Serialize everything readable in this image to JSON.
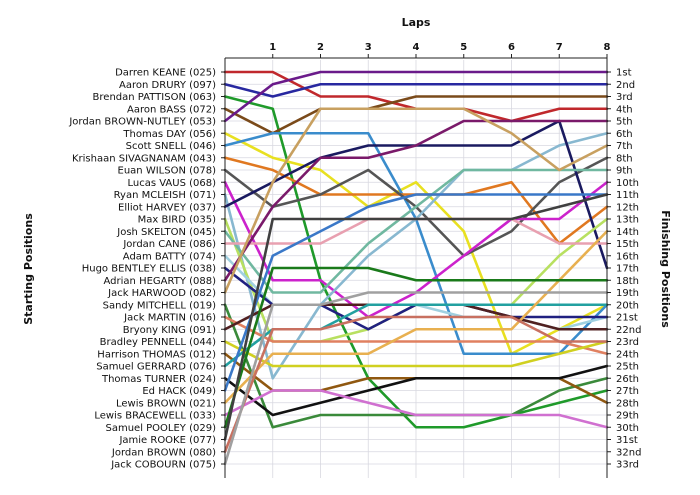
{
  "chart_data": {
    "type": "line",
    "title": "Laps",
    "ylabel_left": "Starting Positions",
    "ylabel_right": "Finishing Positions",
    "x": [
      0,
      1,
      2,
      3,
      4,
      5,
      6,
      7,
      8
    ],
    "x_tick_labels": [
      "1",
      "2",
      "3",
      "4",
      "5",
      "6",
      "7",
      "8"
    ],
    "xlim": [
      0,
      8
    ],
    "ylim": [
      1,
      33
    ],
    "grid": true,
    "finishing_labels": [
      "1st",
      "2nd",
      "3rd",
      "4th",
      "5th",
      "6th",
      "7th",
      "8th",
      "9th",
      "10th",
      "11th",
      "12th",
      "13th",
      "14th",
      "15th",
      "16th",
      "17th",
      "18th",
      "19th",
      "20th",
      "21st",
      "22nd",
      "23rd",
      "24th",
      "25th",
      "26th",
      "27th",
      "28th",
      "29th",
      "30th",
      "31st",
      "32nd",
      "33rd"
    ],
    "series": [
      {
        "name": "Darren KEANE (025)",
        "color": "#c0282c",
        "positions": [
          1,
          1,
          3,
          3,
          4,
          4,
          5,
          4,
          4
        ]
      },
      {
        "name": "Aaron DRURY (097)",
        "color": "#2828a0",
        "positions": [
          2,
          3,
          2,
          2,
          2,
          2,
          2,
          2,
          2
        ]
      },
      {
        "name": "Brendan PATTISON (063)",
        "color": "#1f9a2a",
        "positions": [
          3,
          4,
          18,
          26,
          30,
          30,
          29,
          28,
          27
        ]
      },
      {
        "name": "Aaron BASS (072)",
        "color": "#7a4a1a",
        "positions": [
          4,
          6,
          4,
          4,
          3,
          3,
          3,
          3,
          3
        ]
      },
      {
        "name": "Jordan BROWN-NUTLEY (053)",
        "color": "#6a1a8a",
        "positions": [
          5,
          2,
          1,
          1,
          1,
          1,
          1,
          1,
          1
        ]
      },
      {
        "name": "Thomas DAY (056)",
        "color": "#e8e020",
        "positions": [
          6,
          8,
          9,
          12,
          10,
          14,
          24,
          22,
          20
        ]
      },
      {
        "name": "Scott SNELL (046)",
        "color": "#3a8ccc",
        "positions": [
          7,
          6,
          6,
          6,
          13,
          24,
          24,
          24,
          20
        ]
      },
      {
        "name": "Krishaan SIVAGNANAM (043)",
        "color": "#e07820",
        "positions": [
          8,
          9,
          11,
          11,
          11,
          11,
          10,
          15,
          12
        ]
      },
      {
        "name": "Euan WILSON (078)",
        "color": "#555555",
        "positions": [
          9,
          12,
          11,
          9,
          12,
          16,
          14,
          10,
          8
        ]
      },
      {
        "name": "Lucas VAUS (068)",
        "color": "#cc22cc",
        "positions": [
          10,
          18,
          18,
          21,
          19,
          16,
          13,
          13,
          10
        ]
      },
      {
        "name": "Ryan MCLEISH (071)",
        "color": "#88b8d0",
        "positions": [
          11,
          26,
          20,
          16,
          13,
          9,
          9,
          7,
          6
        ]
      },
      {
        "name": "Elliot HARVEY (037)",
        "color": "#1a1a60",
        "positions": [
          12,
          10,
          8,
          7,
          7,
          7,
          7,
          5,
          17
        ]
      },
      {
        "name": "Max BIRD (035)",
        "color": "#b8e060",
        "positions": [
          13,
          23,
          23,
          22,
          20,
          20,
          20,
          16,
          13
        ]
      },
      {
        "name": "Josh SKELTON (045)",
        "color": "#70b8a0",
        "positions": [
          14,
          19,
          19,
          15,
          12,
          9,
          9,
          9,
          9
        ]
      },
      {
        "name": "Jordan CANE (086)",
        "color": "#e8a0b0",
        "positions": [
          15,
          15,
          15,
          13,
          13,
          13,
          13,
          15,
          15
        ]
      },
      {
        "name": "Adam BATTY (074)",
        "color": "#a0d0e0",
        "positions": [
          16,
          20,
          20,
          20,
          20,
          21,
          21,
          22,
          21
        ]
      },
      {
        "name": "Hugo BENTLEY ELLIS (038)",
        "color": "#202080",
        "positions": [
          17,
          20,
          20,
          22,
          20,
          20,
          21,
          21,
          21
        ]
      },
      {
        "name": "Adrian HEGARTY (088)",
        "color": "#7a1a6a",
        "positions": [
          18,
          12,
          8,
          8,
          7,
          5,
          5,
          5,
          5
        ]
      },
      {
        "name": "Jack HARWOOD (082)",
        "color": "#c8a060",
        "positions": [
          19,
          10,
          4,
          4,
          4,
          4,
          6,
          9,
          7
        ]
      },
      {
        "name": "Sandy MITCHELL (019)",
        "color": "#3a8a3a",
        "positions": [
          20,
          30,
          29,
          29,
          29,
          29,
          29,
          27,
          26
        ]
      },
      {
        "name": "Jack MARTIN (016)",
        "color": "#e08060",
        "positions": [
          21,
          23,
          23,
          23,
          23,
          23,
          23,
          23,
          24
        ]
      },
      {
        "name": "Bryony KING (091)",
        "color": "#502020",
        "positions": [
          22,
          20,
          20,
          20,
          20,
          20,
          21,
          22,
          22
        ]
      },
      {
        "name": "Bradley PENNELL (044)",
        "color": "#d0d020",
        "positions": [
          23,
          25,
          25,
          25,
          25,
          25,
          25,
          24,
          23
        ]
      },
      {
        "name": "Harrison THOMAS (012)",
        "color": "#905810",
        "positions": [
          24,
          27,
          27,
          26,
          26,
          26,
          26,
          26,
          28
        ]
      },
      {
        "name": "Samuel GERRARD (076)",
        "color": "#22a0a0",
        "positions": [
          25,
          22,
          22,
          20,
          20,
          20,
          20,
          20,
          20
        ]
      },
      {
        "name": "Thomas TURNER (024)",
        "color": "#111111",
        "positions": [
          26,
          29,
          28,
          27,
          26,
          26,
          26,
          26,
          25
        ]
      },
      {
        "name": "Ed HACK (049)",
        "color": "#3a78c8",
        "positions": [
          27,
          16,
          14,
          12,
          11,
          11,
          11,
          11,
          11
        ]
      },
      {
        "name": "Lewis BROWN (021)",
        "color": "#e8b050",
        "positions": [
          28,
          24,
          24,
          24,
          22,
          22,
          22,
          18,
          14
        ]
      },
      {
        "name": "Lewis BRACEWELL (033)",
        "color": "#d070d0",
        "positions": [
          29,
          27,
          27,
          28,
          29,
          29,
          29,
          29,
          30
        ]
      },
      {
        "name": "Samuel POOLEY (029)",
        "color": "#1a7a1a",
        "positions": [
          30,
          17,
          17,
          17,
          18,
          18,
          18,
          18,
          18
        ]
      },
      {
        "name": "Jamie ROOKE (077)",
        "color": "#404040",
        "positions": [
          31,
          13,
          13,
          13,
          13,
          13,
          13,
          12,
          11
        ]
      },
      {
        "name": "Jordan BROWN (080)",
        "color": "#c87060",
        "positions": [
          32,
          22,
          22,
          21,
          21,
          21,
          21,
          23,
          23
        ]
      },
      {
        "name": "Jack COBOURN (075)",
        "color": "#a0a0a0",
        "positions": [
          33,
          20,
          20,
          19,
          19,
          19,
          19,
          19,
          19
        ]
      }
    ]
  }
}
